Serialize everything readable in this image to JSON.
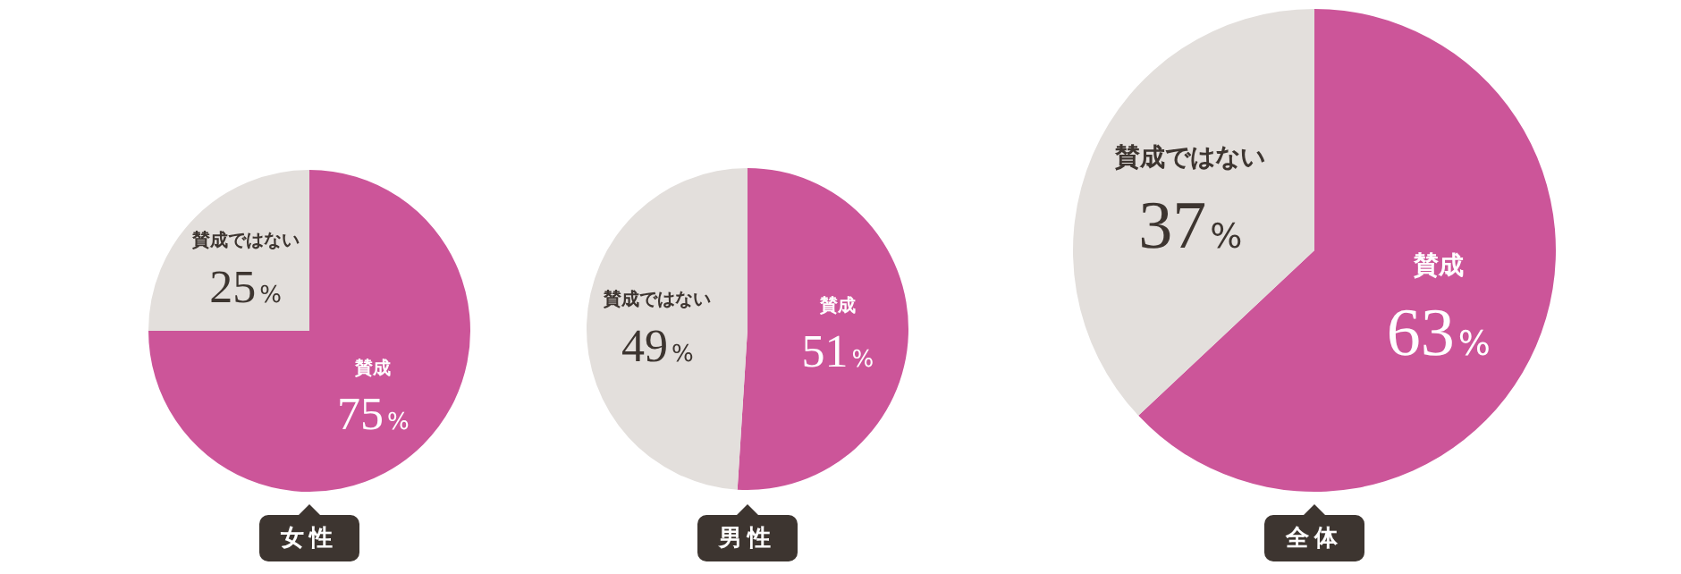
{
  "chart_data": [
    {
      "type": "pie",
      "title": "女性",
      "categories": [
        "賛成",
        "賛成ではない"
      ],
      "values": [
        75,
        25
      ],
      "colors": [
        "#cc5599",
        "#e3dfdc"
      ],
      "value_labels": [
        "75%",
        "25%"
      ]
    },
    {
      "type": "pie",
      "title": "男性",
      "categories": [
        "賛成",
        "賛成ではない"
      ],
      "values": [
        51,
        49
      ],
      "colors": [
        "#cc5599",
        "#e3dfdc"
      ],
      "value_labels": [
        "51%",
        "49%"
      ]
    },
    {
      "type": "pie",
      "title": "全体",
      "categories": [
        "賛成",
        "賛成ではない"
      ],
      "values": [
        63,
        37
      ],
      "colors": [
        "#cc5599",
        "#e3dfdc"
      ],
      "value_labels": [
        "63%",
        "37%"
      ]
    }
  ]
}
